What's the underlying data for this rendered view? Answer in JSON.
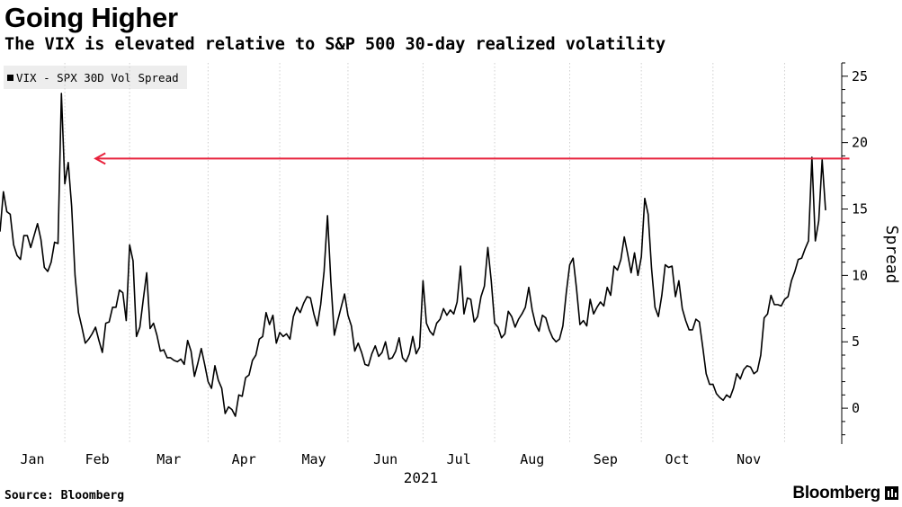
{
  "header": {
    "title": "Going Higher",
    "subtitle": "The VIX is elevated relative to S&P 500 30-day realized volatility"
  },
  "footer": {
    "source": "Source: Bloomberg",
    "brand": "Bloomberg"
  },
  "colors": {
    "line": "#000000",
    "arrow": "#e8223c",
    "grid": "#cfcfcf",
    "legend_bg": "#ededed"
  },
  "chart_data": {
    "type": "line",
    "title": "Going Higher",
    "subtitle": "The VIX is elevated relative to S&P 500 30-day realized volatility",
    "ylabel": "Spread",
    "year_label": "2021",
    "ylim": [
      -2.7,
      26
    ],
    "y_ticks": [
      0,
      5,
      10,
      15,
      20,
      25
    ],
    "x_ticks": [
      "Jan",
      "Feb",
      "Mar",
      "Apr",
      "May",
      "Jun",
      "Jul",
      "Aug",
      "Sep",
      "Oct",
      "Nov"
    ],
    "grid": "vertical dotted at month boundaries",
    "legend_position": "top-left",
    "series": [
      {
        "name": "VIX - SPX 30D Vol Spread",
        "values": [
          13.3,
          16.3,
          14.8,
          14.6,
          12.3,
          11.5,
          11.2,
          13.0,
          13.0,
          12.1,
          13.0,
          13.9,
          12.7,
          10.6,
          10.3,
          11.0,
          12.5,
          12.4,
          23.7,
          16.9,
          18.5,
          15.2,
          10.0,
          7.2,
          6.1,
          4.9,
          5.2,
          5.6,
          6.1,
          5.1,
          4.2,
          6.4,
          6.5,
          7.6,
          7.6,
          8.9,
          8.7,
          6.6,
          12.3,
          11.1,
          5.4,
          6.1,
          8.2,
          10.2,
          6.0,
          6.4,
          5.5,
          4.3,
          4.4,
          3.8,
          3.8,
          3.6,
          3.5,
          3.7,
          3.3,
          5.1,
          4.3,
          2.4,
          3.4,
          4.5,
          3.3,
          2.0,
          1.5,
          3.2,
          2.1,
          1.5,
          -0.4,
          0.1,
          -0.1,
          -0.6,
          1.0,
          0.9,
          2.3,
          2.5,
          3.6,
          4.0,
          5.2,
          5.4,
          7.2,
          6.3,
          7.0,
          4.9,
          5.7,
          5.4,
          5.6,
          5.2,
          6.9,
          7.6,
          7.2,
          7.9,
          8.4,
          8.3,
          7.1,
          6.2,
          7.8,
          10.3,
          14.5,
          9.5,
          5.5,
          6.6,
          7.6,
          8.6,
          7.0,
          6.2,
          4.3,
          4.9,
          4.2,
          3.3,
          3.2,
          4.1,
          4.7,
          3.9,
          4.2,
          5.0,
          3.7,
          3.8,
          4.3,
          5.3,
          3.8,
          3.5,
          4.1,
          5.4,
          4.1,
          4.6,
          9.6,
          6.4,
          5.8,
          5.5,
          6.4,
          6.7,
          7.5,
          7.0,
          7.4,
          7.1,
          8.0,
          10.7,
          7.1,
          8.3,
          8.2,
          6.5,
          6.9,
          8.4,
          9.2,
          12.1,
          9.6,
          6.4,
          6.1,
          5.3,
          5.6,
          7.3,
          6.9,
          6.1,
          6.7,
          7.1,
          7.6,
          9.1,
          7.4,
          6.3,
          5.8,
          7.0,
          6.8,
          5.9,
          5.3,
          5.0,
          5.2,
          6.2,
          8.7,
          10.8,
          11.3,
          9.0,
          6.3,
          6.6,
          6.2,
          8.2,
          7.1,
          7.6,
          8.0,
          7.7,
          9.1,
          8.5,
          10.7,
          10.4,
          11.2,
          12.9,
          11.6,
          10.2,
          11.7,
          10.0,
          11.4,
          15.8,
          14.6,
          10.5,
          7.6,
          6.9,
          8.5,
          10.8,
          10.6,
          10.7,
          8.4,
          9.6,
          7.5,
          6.6,
          5.9,
          5.9,
          6.7,
          6.5,
          4.6,
          2.6,
          1.8,
          1.8,
          1.1,
          0.8,
          0.6,
          1.0,
          0.8,
          1.5,
          2.6,
          2.2,
          2.9,
          3.2,
          3.1,
          2.6,
          2.8,
          4.0,
          6.8,
          7.1,
          8.5,
          7.8,
          7.8,
          7.7,
          8.2,
          8.4,
          9.6,
          10.3,
          11.2,
          11.3,
          12.0,
          12.6,
          18.9,
          12.6,
          14.1,
          18.7,
          14.9
        ]
      }
    ],
    "annotations": [
      {
        "type": "arrow",
        "from_x_index": 249,
        "to_x_index": 28,
        "y": 18.8
      }
    ]
  }
}
